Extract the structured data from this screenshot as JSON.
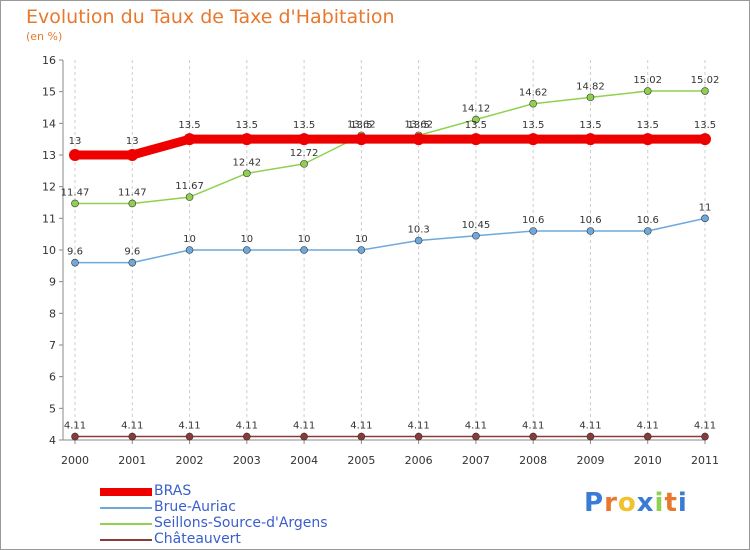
{
  "title": "Evolution du Taux de Taxe d'Habitation",
  "unit": "(en %)",
  "logo_text": "Proxiti",
  "colors": {
    "title": "#e8782d",
    "legend_text": "#3a5fcd",
    "grid": "#cccccc"
  },
  "chart_data": {
    "type": "line",
    "x": [
      "2000",
      "2001",
      "2002",
      "2003",
      "2004",
      "2005",
      "2006",
      "2007",
      "2008",
      "2009",
      "2010",
      "2011"
    ],
    "ylim": [
      4,
      16
    ],
    "yticks": [
      4,
      5,
      6,
      7,
      8,
      9,
      10,
      11,
      12,
      13,
      14,
      15,
      16
    ],
    "grid": "vertical dashed",
    "legend_position": "bottom-left",
    "series": [
      {
        "name": "BRAS",
        "color": "#ee0000",
        "values": [
          13,
          13,
          13.5,
          13.5,
          13.5,
          13.5,
          13.5,
          13.5,
          13.5,
          13.5,
          13.5,
          13.5
        ],
        "labels": [
          "13",
          "13",
          "13.5",
          "13.5",
          "13.5",
          "13.5",
          "13.5",
          "13.5",
          "13.5",
          "13.5",
          "13.5",
          "13.5"
        ]
      },
      {
        "name": "Brue-Auriac",
        "color": "#6fa8dc",
        "values": [
          9.6,
          9.6,
          10,
          10,
          10,
          10,
          10.3,
          10.45,
          10.6,
          10.6,
          10.6,
          11
        ],
        "labels": [
          "9.6",
          "9.6",
          "10",
          "10",
          "10",
          "10",
          "10.3",
          "10.45",
          "10.6",
          "10.6",
          "10.6",
          "11"
        ]
      },
      {
        "name": "Seillons-Source-d'Argens",
        "color": "#8fd14f",
        "values": [
          11.47,
          11.47,
          11.67,
          12.42,
          12.72,
          13.62,
          13.62,
          14.12,
          14.62,
          14.82,
          15.02,
          15.02
        ],
        "labels": [
          "11.47",
          "11.47",
          "11.67",
          "12.42",
          "12.72",
          "13.62",
          "13.62",
          "14.12",
          "14.62",
          "14.82",
          "15.02",
          "15.02"
        ]
      },
      {
        "name": "Châteauvert",
        "color": "#8b3a3a",
        "values": [
          4.11,
          4.11,
          4.11,
          4.11,
          4.11,
          4.11,
          4.11,
          4.11,
          4.11,
          4.11,
          4.11,
          4.11
        ],
        "labels": [
          "4.11",
          "4.11",
          "4.11",
          "4.11",
          "4.11",
          "4.11",
          "4.11",
          "4.11",
          "4.11",
          "4.11",
          "4.11",
          "4.11"
        ]
      }
    ]
  }
}
